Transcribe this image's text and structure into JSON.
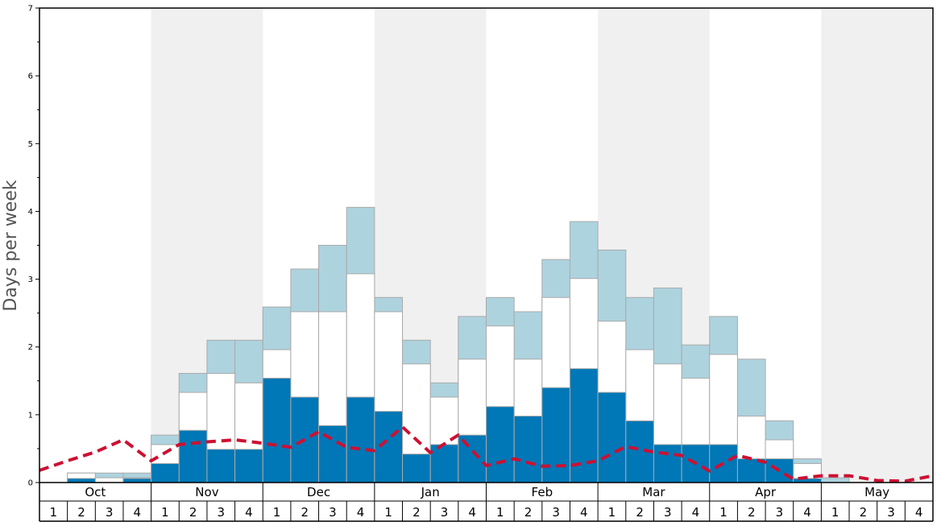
{
  "chart_data": {
    "type": "bar",
    "ylabel": "Days per week",
    "ylim": [
      0,
      7
    ],
    "yticks": [
      "0",
      "1",
      "2",
      "3",
      "4",
      "5",
      "6",
      "7"
    ],
    "months": [
      "Oct",
      "Nov",
      "Dec",
      "Jan",
      "Feb",
      "Mar",
      "Apr",
      "May"
    ],
    "week_labels": [
      "1",
      "2",
      "3",
      "4",
      "1",
      "2",
      "3",
      "4",
      "1",
      "2",
      "3",
      "4",
      "1",
      "2",
      "3",
      "4",
      "1",
      "2",
      "3",
      "4",
      "1",
      "2",
      "3",
      "4",
      "1",
      "2",
      "3",
      "4",
      "1",
      "2",
      "3",
      "4"
    ],
    "shaded_months": [
      "Nov",
      "Jan",
      "Mar",
      "May"
    ],
    "colors": {
      "dark": "#0077b6",
      "white": "#ffffff",
      "light": "#add3df",
      "dashed_line": "#cc1133",
      "shade": "#f0f0f0",
      "bar_border": "#aaaaaa"
    },
    "series": [
      {
        "values": [
          0,
          0.06,
          0,
          0.06,
          0.28,
          0.77,
          0.49,
          0.49,
          1.54,
          1.26,
          0.84,
          1.26,
          1.05,
          0.42,
          0.56,
          0.7,
          1.12,
          0.98,
          1.4,
          1.68,
          1.33,
          0.91,
          0.56,
          0.56,
          0.56,
          0.35,
          0.35,
          0.06,
          0,
          0,
          0,
          0
        ]
      },
      {
        "values": [
          0,
          0.14,
          0.07,
          0.07,
          0.56,
          1.33,
          1.61,
          1.47,
          1.96,
          2.52,
          2.52,
          3.08,
          2.52,
          1.75,
          1.26,
          1.82,
          2.31,
          1.82,
          2.73,
          3.01,
          2.38,
          1.96,
          1.75,
          1.54,
          1.89,
          0.98,
          0.63,
          0.28,
          0,
          0,
          0,
          0
        ]
      },
      {
        "values": [
          0,
          0.14,
          0.14,
          0.14,
          0.7,
          1.61,
          2.1,
          2.1,
          2.59,
          3.15,
          3.5,
          4.06,
          2.73,
          2.1,
          1.47,
          2.45,
          2.73,
          2.52,
          3.29,
          3.85,
          3.43,
          2.73,
          2.87,
          2.03,
          2.45,
          1.82,
          0.91,
          0.35,
          0.07,
          0,
          0,
          0
        ]
      },
      {
        "values": [
          0.18,
          0.32,
          0.45,
          0.63,
          0.32,
          0.56,
          0.6,
          0.63,
          0.58,
          0.52,
          0.75,
          0.52,
          0.47,
          0.82,
          0.44,
          0.7,
          0.25,
          0.35,
          0.24,
          0.25,
          0.32,
          0.53,
          0.45,
          0.4,
          0.17,
          0.4,
          0.3,
          0.05,
          0.1,
          0.1,
          0.03,
          0.02,
          0.1
        ]
      }
    ]
  }
}
